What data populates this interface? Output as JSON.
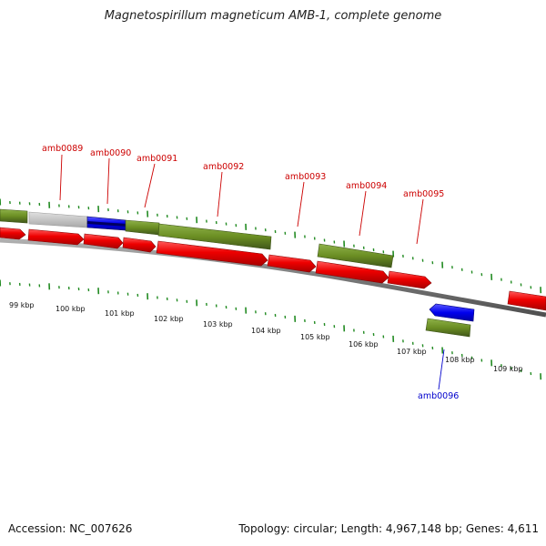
{
  "title": "Magnetospirillum magneticum AMB-1, complete genome",
  "footer": {
    "accession": "Accession: NC_007626",
    "summary": "Topology: circular; Length: 4,967,148 bp; Genes: 4,611"
  },
  "colors": {
    "forward_cds": "#ff0000",
    "reverse_cds": "#6b8e23",
    "tick_green": "#228b22",
    "label_red": "#cc0000",
    "label_blue": "#0000cc",
    "backbone": "#808080",
    "gray_feature": "#c0c0c0",
    "blue_feature": "#0000ee",
    "navy_feature": "#000080"
  },
  "kbp_labels": [
    "99 kbp",
    "100 kbp",
    "101 kbp",
    "102 kbp",
    "103 kbp",
    "104 kbp",
    "105 kbp",
    "106 kbp",
    "107 kbp",
    "108 kbp",
    "109 kbp"
  ],
  "gene_labels": [
    {
      "name": "amb0089",
      "color": "red"
    },
    {
      "name": "amb0090",
      "color": "red"
    },
    {
      "name": "amb0091",
      "color": "red"
    },
    {
      "name": "amb0092",
      "color": "red"
    },
    {
      "name": "amb0093",
      "color": "red"
    },
    {
      "name": "amb0094",
      "color": "red"
    },
    {
      "name": "amb0095",
      "color": "red"
    },
    {
      "name": "amb0096",
      "color": "blue"
    }
  ]
}
